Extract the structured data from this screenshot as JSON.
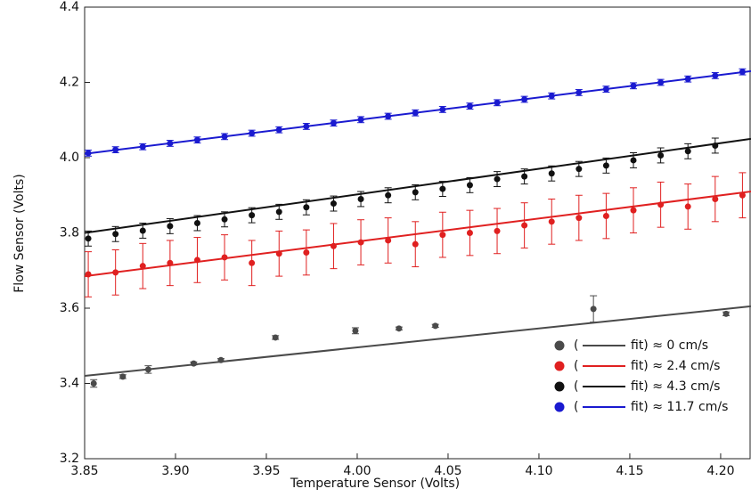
{
  "chart_data": {
    "type": "scatter",
    "x_label": "Temperature Sensor (Volts)",
    "y_label": "Flow Sensor (Volts)",
    "xlim": [
      3.85,
      4.2167
    ],
    "ylim": [
      3.2,
      4.4
    ],
    "xticks": [
      3.85,
      {
        "value": 3.9,
        "label": "3.90"
      },
      3.95,
      {
        "value": 4.0,
        "label": "4.00"
      },
      4.05,
      {
        "value": 4.1,
        "label": "4.10"
      },
      4.15,
      {
        "value": 4.2,
        "label": "4.20"
      }
    ],
    "yticks": [
      3.2,
      3.4,
      3.6,
      3.8,
      {
        "value": 4.0,
        "label": "4.0"
      },
      4.2,
      4.4
    ],
    "legend": "bottom-right",
    "legend_open": "(",
    "series": [
      {
        "name": "fit) ≈ 0 cm/s",
        "color": "#4a4a4a",
        "x": [
          3.855,
          3.871,
          3.885,
          3.91,
          3.925,
          3.955,
          3.999,
          4.023,
          4.043,
          4.13,
          4.203
        ],
        "values": [
          3.4,
          3.418,
          3.437,
          3.453,
          3.462,
          3.522,
          3.54,
          3.546,
          3.553,
          3.598,
          3.585
        ],
        "errors": [
          0.01,
          0.005,
          0.01,
          0.004,
          0.004,
          0.005,
          0.008,
          0.004,
          0.004,
          0.035,
          0.005
        ],
        "fit": {
          "x": [
            3.85,
            4.2167
          ],
          "y": [
            3.42,
            3.605
          ]
        }
      },
      {
        "name": "fit) ≈ 2.4 cm/s",
        "color": "#e02020",
        "x": [
          3.852,
          3.867,
          3.882,
          3.897,
          3.912,
          3.927,
          3.942,
          3.957,
          3.972,
          3.987,
          4.002,
          4.017,
          4.032,
          4.047,
          4.062,
          4.077,
          4.092,
          4.107,
          4.122,
          4.137,
          4.152,
          4.167,
          4.182,
          4.197,
          4.212
        ],
        "values": [
          3.69,
          3.695,
          3.712,
          3.72,
          3.728,
          3.735,
          3.72,
          3.745,
          3.748,
          3.765,
          3.775,
          3.78,
          3.77,
          3.795,
          3.8,
          3.805,
          3.82,
          3.83,
          3.84,
          3.845,
          3.86,
          3.875,
          3.87,
          3.89,
          3.9
        ],
        "errors": [
          0.06,
          0.06,
          0.06,
          0.06,
          0.06,
          0.06,
          0.06,
          0.06,
          0.06,
          0.06,
          0.06,
          0.06,
          0.06,
          0.06,
          0.06,
          0.06,
          0.06,
          0.06,
          0.06,
          0.06,
          0.06,
          0.06,
          0.06,
          0.06,
          0.06
        ],
        "fit": {
          "x": [
            3.85,
            4.2167
          ],
          "y": [
            3.685,
            3.91
          ]
        }
      },
      {
        "name": "fit) ≈ 4.3 cm/s",
        "color": "#111111",
        "x": [
          3.852,
          3.867,
          3.882,
          3.897,
          3.912,
          3.927,
          3.942,
          3.957,
          3.972,
          3.987,
          4.002,
          4.017,
          4.032,
          4.047,
          4.062,
          4.077,
          4.092,
          4.107,
          4.122,
          4.137,
          4.152,
          4.167,
          4.182,
          4.197
        ],
        "values": [
          3.785,
          3.797,
          3.806,
          3.818,
          3.826,
          3.836,
          3.847,
          3.856,
          3.868,
          3.878,
          3.89,
          3.9,
          3.908,
          3.917,
          3.927,
          3.943,
          3.95,
          3.958,
          3.97,
          3.979,
          3.993,
          4.006,
          4.017,
          4.032
        ],
        "errors": [
          0.02,
          0.02,
          0.02,
          0.02,
          0.02,
          0.02,
          0.02,
          0.02,
          0.02,
          0.02,
          0.02,
          0.02,
          0.02,
          0.02,
          0.02,
          0.02,
          0.02,
          0.02,
          0.02,
          0.02,
          0.02,
          0.02,
          0.02,
          0.02
        ],
        "fit": {
          "x": [
            3.85,
            4.2167
          ],
          "y": [
            3.8,
            4.05
          ]
        }
      },
      {
        "name": "fit) ≈ 11.7 cm/s",
        "color": "#1a1ad0",
        "x": [
          3.852,
          3.867,
          3.882,
          3.897,
          3.912,
          3.927,
          3.942,
          3.957,
          3.972,
          3.987,
          4.002,
          4.017,
          4.032,
          4.047,
          4.062,
          4.077,
          4.092,
          4.107,
          4.122,
          4.137,
          4.152,
          4.167,
          4.182,
          4.197,
          4.212
        ],
        "values": [
          4.012,
          4.021,
          4.029,
          4.038,
          4.047,
          4.056,
          4.065,
          4.074,
          4.083,
          4.092,
          4.101,
          4.11,
          4.119,
          4.128,
          4.137,
          4.146,
          4.155,
          4.164,
          4.173,
          4.182,
          4.191,
          4.2,
          4.209,
          4.218,
          4.228
        ],
        "errors": [
          0.008,
          0.008,
          0.008,
          0.008,
          0.008,
          0.008,
          0.008,
          0.008,
          0.008,
          0.008,
          0.008,
          0.008,
          0.008,
          0.008,
          0.008,
          0.008,
          0.008,
          0.008,
          0.008,
          0.008,
          0.008,
          0.008,
          0.008,
          0.008,
          0.008
        ],
        "fit": {
          "x": [
            3.85,
            4.2167
          ],
          "y": [
            4.01,
            4.23
          ]
        }
      }
    ]
  }
}
